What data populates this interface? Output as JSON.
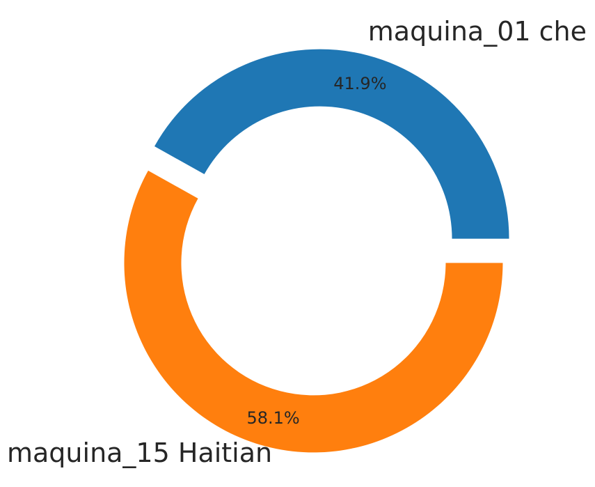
{
  "chart_data": {
    "type": "pie",
    "variant": "donut",
    "slices": [
      {
        "label": "maquina_01 che",
        "value": 41.9,
        "pct_label": "41.9%",
        "color": "#1f77b4"
      },
      {
        "label": "maquina_15 Haitian",
        "value": 58.1,
        "pct_label": "58.1%",
        "color": "#ff7f0e"
      }
    ],
    "title": "",
    "legend": "none"
  }
}
